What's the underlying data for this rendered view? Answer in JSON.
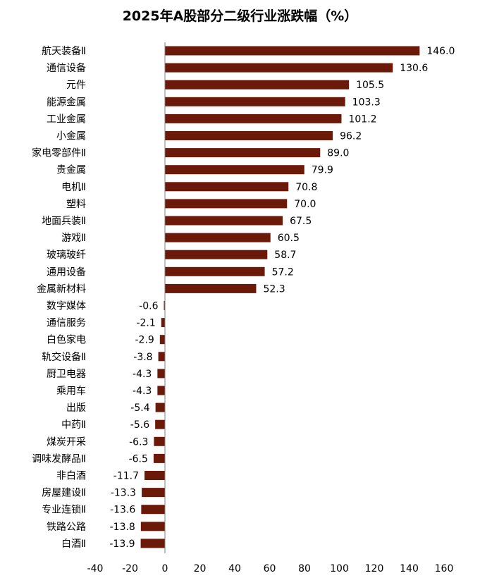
{
  "chart_data": {
    "type": "bar",
    "orientation": "horizontal",
    "title": "2025年A股部分二级行业涨跌幅（%）",
    "xlabel": "",
    "ylabel": "",
    "xlim": [
      -40,
      160
    ],
    "ticks": [
      -40,
      -20,
      0,
      20,
      40,
      60,
      80,
      100,
      120,
      140,
      160
    ],
    "grid": false,
    "bar_color": "#6b1a0a",
    "categories": [
      "航天装备Ⅱ",
      "通信设备",
      "元件",
      "能源金属",
      "工业金属",
      "小金属",
      "家电零部件Ⅱ",
      "贵金属",
      "电机Ⅱ",
      "塑料",
      "地面兵装Ⅱ",
      "游戏Ⅱ",
      "玻璃玻纤",
      "通用设备",
      "金属新材料",
      "数字媒体",
      "通信服务",
      "白色家电",
      "轨交设备Ⅱ",
      "厨卫电器",
      "乘用车",
      "出版",
      "中药Ⅱ",
      "煤炭开采",
      "调味发酵品Ⅱ",
      "非白酒",
      "房屋建设Ⅱ",
      "专业连锁Ⅱ",
      "铁路公路",
      "白酒Ⅱ"
    ],
    "values": [
      146.0,
      130.6,
      105.5,
      103.3,
      101.2,
      96.2,
      89.0,
      79.9,
      70.8,
      70.0,
      67.5,
      60.5,
      58.7,
      57.2,
      52.3,
      -0.6,
      -2.1,
      -2.9,
      -3.8,
      -4.3,
      -4.3,
      -5.4,
      -5.6,
      -6.3,
      -6.5,
      -11.7,
      -13.3,
      -13.6,
      -13.8,
      -13.9
    ],
    "value_labels": [
      "146.0",
      "130.6",
      "105.5",
      "103.3",
      "101.2",
      "96.2",
      "89.0",
      "79.9",
      "70.8",
      "70.0",
      "67.5",
      "60.5",
      "58.7",
      "57.2",
      "52.3",
      "-0.6",
      "-2.1",
      "-2.9",
      "-3.8",
      "-4.3",
      "-4.3",
      "-5.4",
      "-5.6",
      "-6.3",
      "-6.5",
      "-11.7",
      "-13.3",
      "-13.6",
      "-13.8",
      "-13.9"
    ]
  }
}
